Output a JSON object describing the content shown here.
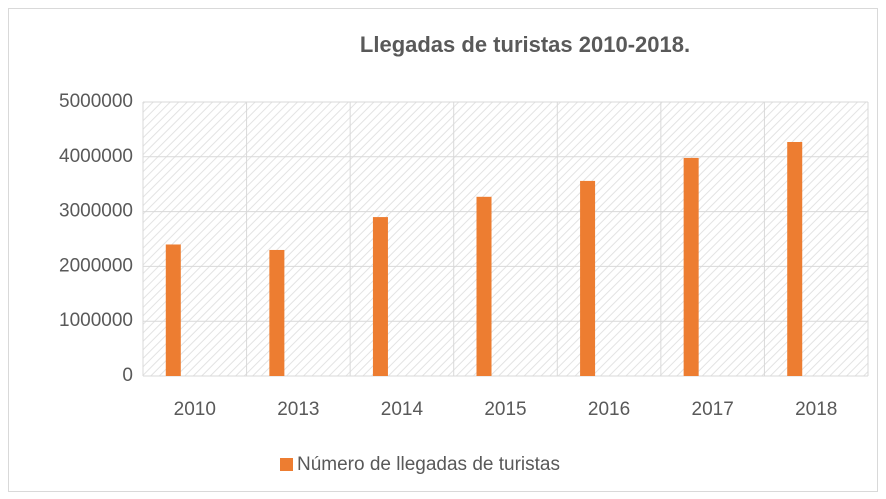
{
  "chart_data": {
    "type": "bar",
    "title": "Llegadas de turistas 2010-2018.",
    "categories": [
      "2010",
      "2013",
      "2014",
      "2015",
      "2016",
      "2017",
      "2018"
    ],
    "series": [
      {
        "name": "Número de llegadas de turistas",
        "color": "#ed7d31",
        "values": [
          2400000,
          2300000,
          2900000,
          3270000,
          3560000,
          3980000,
          4270000
        ]
      }
    ],
    "ylim": [
      0,
      5000000
    ],
    "yticks": [
      0,
      1000000,
      2000000,
      3000000,
      4000000,
      5000000
    ],
    "grid": true,
    "legend": "bottom"
  }
}
